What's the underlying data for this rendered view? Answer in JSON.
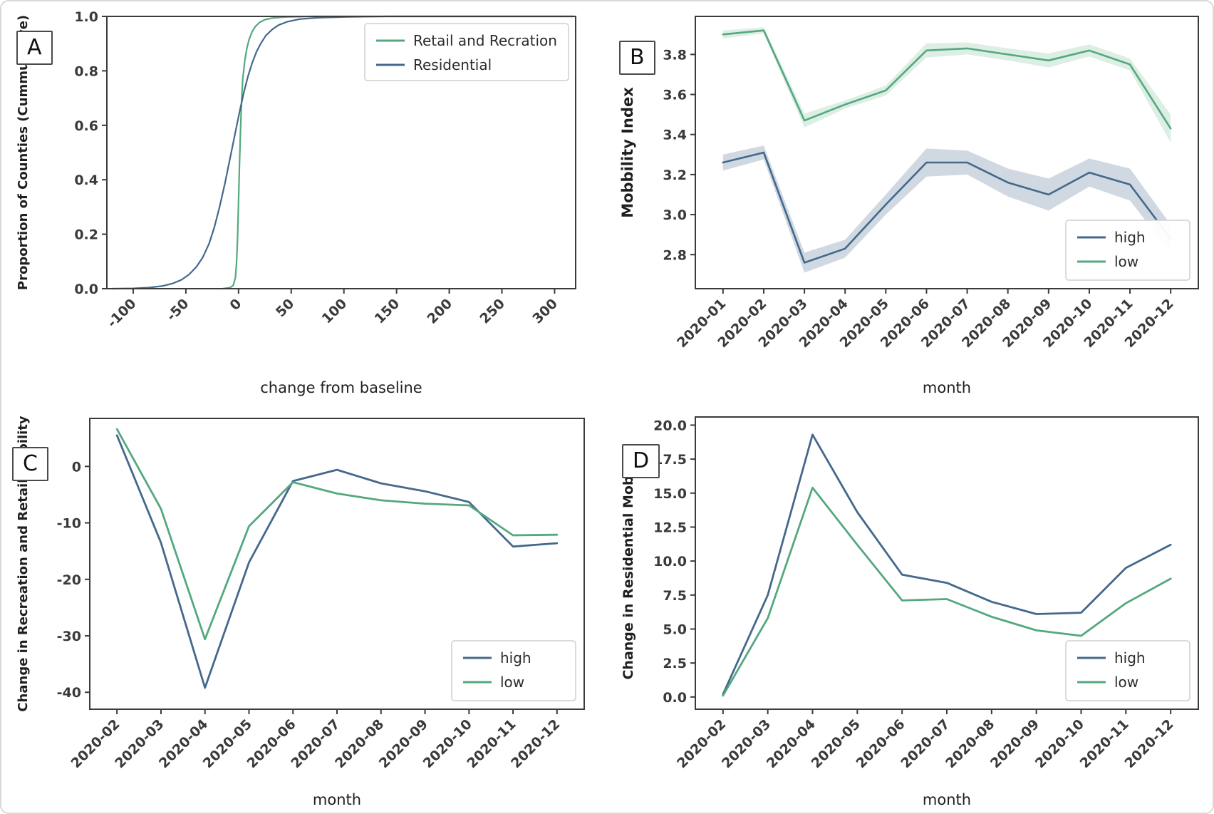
{
  "figure": {
    "panel_letters": [
      "A",
      "B",
      "C",
      "D"
    ]
  },
  "colors": {
    "high_line": "#44688c",
    "low_line": "#54a87e",
    "high_band_opacity": 0.25,
    "low_band_opacity": 0.2,
    "spine": "#3b3b3b",
    "tick_text": "#3a3a3a",
    "axis_title": "#1f1f1f",
    "legend_border": "#cfcfcf",
    "legend_text": "#2b2b2b",
    "frame_border": "#d8d8d8"
  },
  "chart_data": [
    {
      "panel": "A",
      "type": "line",
      "xlabel": "change from baseline",
      "ylabel": "Proportion of Counties (Cummulative)",
      "xlim": [
        -125,
        320
      ],
      "xticks": [
        -100,
        -50,
        0,
        50,
        100,
        150,
        200,
        250,
        300
      ],
      "xtick_labels": [
        "-100",
        "-50",
        "0",
        "50",
        "100",
        "150",
        "200",
        "250",
        "300"
      ],
      "ylim": [
        0,
        1
      ],
      "yticks": [
        0,
        0.2,
        0.4,
        0.6,
        0.8,
        1.0
      ],
      "ytick_labels": [
        "0.0",
        "0.2",
        "0.4",
        "0.6",
        "0.8",
        "1.0"
      ],
      "grid": false,
      "legend": {
        "position": "top-right",
        "entries": [
          "Retail and Recration",
          "Residential"
        ]
      },
      "series": [
        {
          "name": "Retail and Recration",
          "color_key": "low",
          "points": [
            [
              -15,
              0
            ],
            [
              -8,
              0.004
            ],
            [
              -5,
              0.012
            ],
            [
              -3,
              0.04
            ],
            [
              -2,
              0.09
            ],
            [
              -1,
              0.18
            ],
            [
              0,
              0.32
            ],
            [
              1,
              0.47
            ],
            [
              2,
              0.6
            ],
            [
              3,
              0.7
            ],
            [
              4,
              0.77
            ],
            [
              6,
              0.84
            ],
            [
              8,
              0.885
            ],
            [
              10,
              0.915
            ],
            [
              13,
              0.945
            ],
            [
              16,
              0.963
            ],
            [
              20,
              0.978
            ],
            [
              25,
              0.988
            ],
            [
              32,
              0.994
            ],
            [
              45,
              0.998
            ],
            [
              70,
              1.0
            ],
            [
              318,
              1.0
            ]
          ]
        },
        {
          "name": "Residential",
          "color_key": "high",
          "points": [
            [
              -120,
              0
            ],
            [
              -100,
              0.001
            ],
            [
              -85,
              0.004
            ],
            [
              -72,
              0.01
            ],
            [
              -62,
              0.02
            ],
            [
              -54,
              0.033
            ],
            [
              -47,
              0.052
            ],
            [
              -40,
              0.08
            ],
            [
              -34,
              0.115
            ],
            [
              -28,
              0.165
            ],
            [
              -23,
              0.225
            ],
            [
              -18,
              0.3
            ],
            [
              -13,
              0.385
            ],
            [
              -8,
              0.48
            ],
            [
              -3,
              0.575
            ],
            [
              1,
              0.65
            ],
            [
              5,
              0.72
            ],
            [
              9,
              0.78
            ],
            [
              13,
              0.83
            ],
            [
              17,
              0.87
            ],
            [
              21,
              0.9
            ],
            [
              26,
              0.93
            ],
            [
              32,
              0.952
            ],
            [
              38,
              0.968
            ],
            [
              46,
              0.98
            ],
            [
              58,
              0.99
            ],
            [
              75,
              0.995
            ],
            [
              100,
              0.998
            ],
            [
              140,
              1.0
            ],
            [
              318,
              1.0
            ]
          ]
        }
      ]
    },
    {
      "panel": "B",
      "type": "line",
      "xlabel": "month",
      "ylabel": "Mobbility Index",
      "categories": [
        "2020-01",
        "2020-02",
        "2020-03",
        "2020-04",
        "2020-05",
        "2020-06",
        "2020-07",
        "2020-08",
        "2020-09",
        "2020-10",
        "2020-11",
        "2020-12"
      ],
      "ylim": [
        2.63,
        3.99
      ],
      "yticks": [
        2.8,
        3.0,
        3.2,
        3.4,
        3.6,
        3.8
      ],
      "ytick_labels": [
        "2.8",
        "3.0",
        "3.2",
        "3.4",
        "3.6",
        "3.8"
      ],
      "grid": false,
      "legend": {
        "position": "bottom-right",
        "entries": [
          "high",
          "low"
        ]
      },
      "series": [
        {
          "name": "high",
          "color_key": "high",
          "values": [
            3.26,
            3.31,
            2.76,
            2.83,
            3.05,
            3.26,
            3.26,
            3.16,
            3.1,
            3.21,
            3.15,
            2.88
          ],
          "band": [
            0.04,
            0.035,
            0.05,
            0.045,
            0.05,
            0.07,
            0.06,
            0.07,
            0.08,
            0.07,
            0.08,
            0.07
          ]
        },
        {
          "name": "low",
          "color_key": "low",
          "values": [
            3.9,
            3.92,
            3.47,
            3.55,
            3.62,
            3.82,
            3.83,
            3.8,
            3.77,
            3.82,
            3.75,
            3.43
          ],
          "band": [
            0.02,
            0.015,
            0.035,
            0.02,
            0.025,
            0.035,
            0.03,
            0.03,
            0.035,
            0.03,
            0.03,
            0.07
          ]
        }
      ]
    },
    {
      "panel": "C",
      "type": "line",
      "xlabel": "month",
      "ylabel": "Change in Recreation and Retail Mobility",
      "categories": [
        "2020-02",
        "2020-03",
        "2020-04",
        "2020-05",
        "2020-06",
        "2020-07",
        "2020-08",
        "2020-09",
        "2020-10",
        "2020-11",
        "2020-12"
      ],
      "ylim": [
        -43,
        8.5
      ],
      "yticks": [
        0,
        -10,
        -20,
        -30,
        -40
      ],
      "ytick_labels": [
        "0",
        "-10",
        "-20",
        "-30",
        "-40"
      ],
      "grid": false,
      "legend": {
        "position": "bottom-right",
        "entries": [
          "high",
          "low"
        ]
      },
      "series": [
        {
          "name": "high",
          "color_key": "high",
          "values": [
            5.5,
            -13.5,
            -39.2,
            -17.0,
            -2.6,
            -0.6,
            -3.0,
            -4.4,
            -6.3,
            -14.2,
            -13.6
          ]
        },
        {
          "name": "low",
          "color_key": "low",
          "values": [
            6.6,
            -7.5,
            -30.6,
            -10.6,
            -2.8,
            -4.8,
            -6.0,
            -6.6,
            -6.9,
            -12.2,
            -12.1
          ]
        }
      ]
    },
    {
      "panel": "D",
      "type": "line",
      "xlabel": "month",
      "ylabel": "Change in Residential Mobility",
      "categories": [
        "2020-02",
        "2020-03",
        "2020-04",
        "2020-05",
        "2020-06",
        "2020-07",
        "2020-08",
        "2020-09",
        "2020-10",
        "2020-11",
        "2020-12"
      ],
      "ylim": [
        -0.9,
        20.6
      ],
      "yticks": [
        0.0,
        2.5,
        5.0,
        7.5,
        10.0,
        12.5,
        15.0,
        17.5,
        20.0
      ],
      "ytick_labels": [
        "0.0",
        "2.5",
        "5.0",
        "7.5",
        "10.0",
        "12.5",
        "15.0",
        "17.5",
        "20.0"
      ],
      "grid": false,
      "legend": {
        "position": "bottom-right",
        "entries": [
          "high",
          "low"
        ]
      },
      "series": [
        {
          "name": "high",
          "color_key": "high",
          "values": [
            0.2,
            7.5,
            19.3,
            13.6,
            9.0,
            8.4,
            7.0,
            6.1,
            6.2,
            9.5,
            11.2
          ]
        },
        {
          "name": "low",
          "color_key": "low",
          "values": [
            0.1,
            5.8,
            15.4,
            11.2,
            7.1,
            7.2,
            5.9,
            4.9,
            4.5,
            6.9,
            8.7
          ]
        }
      ]
    }
  ]
}
